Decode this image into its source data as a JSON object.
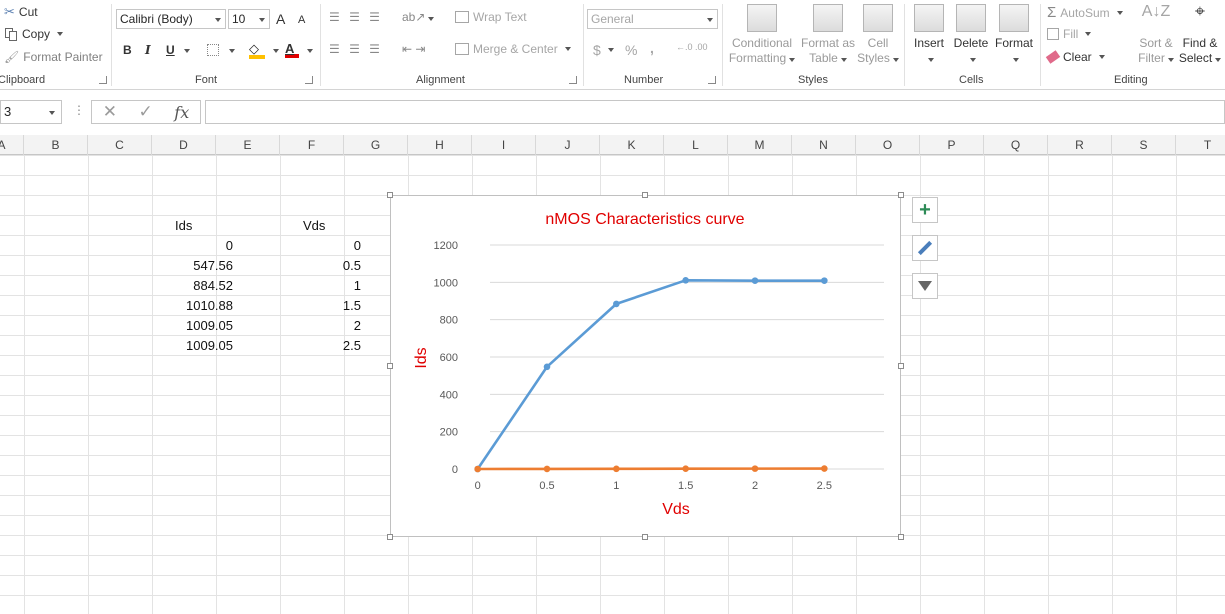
{
  "ribbon": {
    "clipboard": {
      "label": "Clipboard",
      "cut": "Cut",
      "copy": "Copy",
      "format_painter": "Format Painter"
    },
    "font": {
      "label": "Font",
      "font_name": "Calibri (Body)",
      "font_size": "10",
      "bold": "B",
      "italic": "I",
      "underline": "U",
      "grow": "A",
      "shrink": "A",
      "font_color_glyph": "A"
    },
    "alignment": {
      "label": "Alignment",
      "wrap_text": "Wrap Text",
      "merge_center": "Merge & Center"
    },
    "number": {
      "label": "Number",
      "format": "General",
      "currency": "$",
      "percent": "%",
      "comma": ",",
      "inc_decimal": "←.0 .00",
      "dec_decimal": ".00 →.0"
    },
    "styles": {
      "label": "Styles",
      "conditional_1": "Conditional",
      "conditional_2": "Formatting",
      "format_as_1": "Format as",
      "format_as_2": "Table",
      "cell_1": "Cell",
      "cell_2": "Styles"
    },
    "cells": {
      "label": "Cells",
      "insert": "Insert",
      "delete": "Delete",
      "format": "Format"
    },
    "editing": {
      "label": "Editing",
      "autosum": "AutoSum",
      "fill": "Fill",
      "clear": "Clear",
      "sort_1": "Sort &",
      "sort_2": "Filter",
      "find_1": "Find &",
      "find_2": "Select"
    }
  },
  "formula_bar": {
    "name_box": "3",
    "value": ""
  },
  "columns": [
    "A",
    "B",
    "C",
    "D",
    "E",
    "F",
    "G",
    "H",
    "I",
    "J",
    "K",
    "L",
    "M",
    "N",
    "O",
    "P",
    "Q",
    "R",
    "S",
    "T"
  ],
  "sheet": {
    "header_ids": "Ids",
    "header_vds": "Vds",
    "ids": [
      "0",
      "547.56",
      "884.52",
      "1010.88",
      "1009.05",
      "1009.05"
    ],
    "vds": [
      "0",
      "0.5",
      "1",
      "1.5",
      "2",
      "2.5"
    ]
  },
  "chart_data": {
    "type": "line",
    "title": "nMOS Characteristics curve",
    "xlabel": "Vds",
    "ylabel": "Ids",
    "categories": [
      "0",
      "0.5",
      "1",
      "1.5",
      "2",
      "2.5"
    ],
    "ylim": [
      0,
      1200
    ],
    "yticks": [
      "0",
      "200",
      "400",
      "600",
      "800",
      "1000",
      "1200"
    ],
    "grid": true,
    "series": [
      {
        "color": "#5b9bd5",
        "values": [
          0,
          547.56,
          884.52,
          1010.88,
          1009.05,
          1009.05
        ]
      },
      {
        "color": "#ed7d31",
        "values": [
          0,
          0.5,
          1,
          1.5,
          2,
          2.5
        ]
      }
    ],
    "title_color": "#e00000",
    "axis_label_color": "#e00000"
  }
}
